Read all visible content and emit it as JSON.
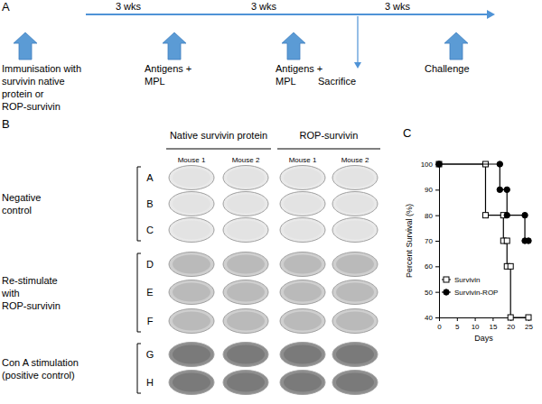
{
  "panels": {
    "a": "A",
    "b": "B",
    "c": "C"
  },
  "timeline": {
    "intervals": [
      "3 wks",
      "3 wks",
      "3 wks"
    ],
    "events": [
      [
        "Immunisation with",
        "survivin native",
        "protein or",
        "ROP-survivin"
      ],
      [
        "Antigens +",
        "MPL"
      ],
      [
        "Antigens +",
        "MPL"
      ],
      [
        "Challenge"
      ]
    ],
    "sacrifice": "Sacrifice"
  },
  "elispot": {
    "column_groups": [
      {
        "label": "Native survivin protein",
        "mice": [
          "Mouse 1",
          "Mouse 2"
        ]
      },
      {
        "label": "ROP-survivin",
        "mice": [
          "Mouse 1",
          "Mouse 2"
        ]
      }
    ],
    "row_groups": [
      {
        "label": [
          "Negative",
          "control"
        ],
        "rows": [
          "A",
          "B",
          "C"
        ]
      },
      {
        "label": [
          "Re-stimulate",
          "with",
          "ROP-survivin"
        ],
        "rows": [
          "D",
          "E",
          "F"
        ]
      },
      {
        "label": [
          "Con A stimulation",
          "(positive control)"
        ],
        "rows": [
          "G",
          "H"
        ]
      }
    ]
  },
  "chart_data": {
    "type": "line",
    "xlabel": "Days",
    "ylabel": "Percent Survival (%)",
    "xlim": [
      0,
      25
    ],
    "xticks": [
      0,
      5,
      10,
      15,
      20,
      25
    ],
    "ylim": [
      40,
      100
    ],
    "yticks": [
      40,
      50,
      60,
      70,
      80,
      90,
      100
    ],
    "legend": "lower-left",
    "series": [
      {
        "name": "Survivin",
        "color": "#000000",
        "marker": "open-square",
        "line_style": "solid",
        "x": [
          0,
          13,
          13,
          18,
          18,
          19,
          19,
          20,
          20,
          25
        ],
        "values": [
          100,
          100,
          80,
          80,
          70,
          70,
          60,
          60,
          40,
          40
        ]
      },
      {
        "name": "Survivin-ROP",
        "color": "#000000",
        "marker": "filled-circle",
        "line_style": "solid",
        "x": [
          0,
          17,
          17,
          19,
          19,
          24,
          24,
          25
        ],
        "values": [
          100,
          100,
          90,
          90,
          80,
          80,
          70,
          70
        ]
      }
    ]
  }
}
